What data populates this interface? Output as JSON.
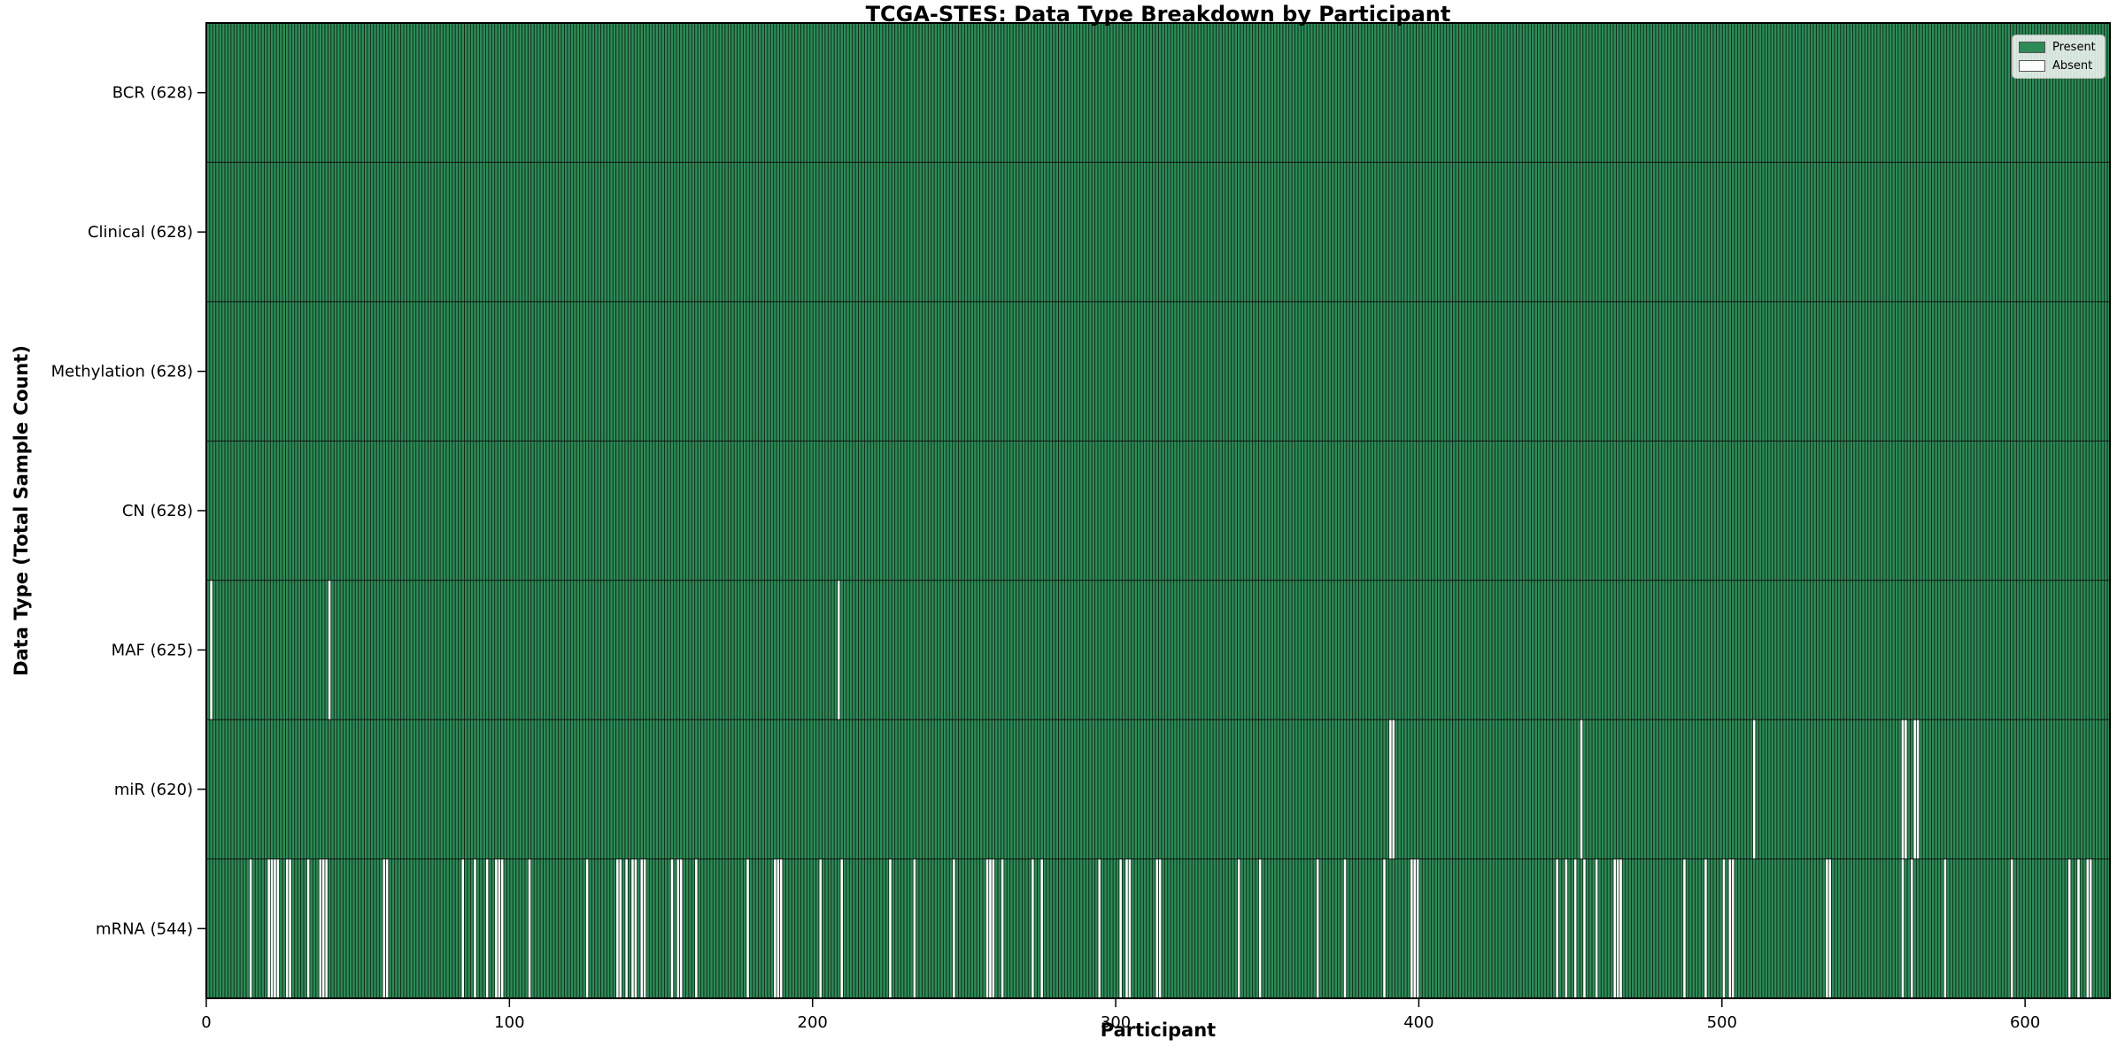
{
  "figure": {
    "title": "TCGA-STES: Data Type Breakdown by Participant"
  },
  "chart_data": {
    "type": "heatmap",
    "title": "TCGA-STES: Data Type Breakdown by Participant",
    "xlabel": "Participant",
    "ylabel": "Data Type (Total Sample Count)",
    "n_participants": 628,
    "x_ticks": [
      0,
      100,
      200,
      300,
      400,
      500,
      600
    ],
    "x_range": [
      0,
      628
    ],
    "grid": false,
    "legend_position": "upper right",
    "legend": [
      {
        "label": "Present",
        "color": "#2e8b57"
      },
      {
        "label": "Absent",
        "color": "#ffffff"
      }
    ],
    "colors": {
      "present": "#2e8b57",
      "absent": "#ffffff",
      "bar_edge": "#000000",
      "frame": "#000000"
    },
    "rows": [
      {
        "name": "BCR",
        "label": "BCR (628)",
        "present_count": 628,
        "absent_participants": []
      },
      {
        "name": "Clinical",
        "label": "Clinical (628)",
        "present_count": 628,
        "absent_participants": []
      },
      {
        "name": "Methylation",
        "label": "Methylation (628)",
        "present_count": 628,
        "absent_participants": []
      },
      {
        "name": "CN",
        "label": "CN (628)",
        "present_count": 628,
        "absent_participants": []
      },
      {
        "name": "MAF",
        "label": "MAF (625)",
        "present_count": 625,
        "absent_participants": [
          1,
          40,
          208
        ]
      },
      {
        "name": "miR",
        "label": "miR (620)",
        "present_count": 620,
        "absent_participants": [
          390,
          391,
          453,
          510,
          559,
          560,
          563,
          564
        ]
      },
      {
        "name": "mRNA",
        "label": "mRNA (544)",
        "present_count": 544,
        "absent_participants": [
          14,
          20,
          21,
          22,
          23,
          26,
          27,
          33,
          37,
          38,
          39,
          58,
          59,
          84,
          88,
          92,
          95,
          96,
          97,
          106,
          125,
          135,
          136,
          138,
          140,
          141,
          143,
          144,
          153,
          155,
          156,
          161,
          178,
          187,
          188,
          189,
          202,
          209,
          225,
          233,
          246,
          257,
          258,
          259,
          262,
          272,
          275,
          294,
          301,
          303,
          304,
          313,
          314,
          340,
          347,
          366,
          375,
          388,
          397,
          398,
          399,
          445,
          448,
          451,
          454,
          458,
          464,
          465,
          466,
          487,
          494,
          500,
          502,
          503,
          534,
          535,
          559,
          562,
          573,
          595,
          614,
          617,
          620,
          621
        ]
      }
    ]
  }
}
